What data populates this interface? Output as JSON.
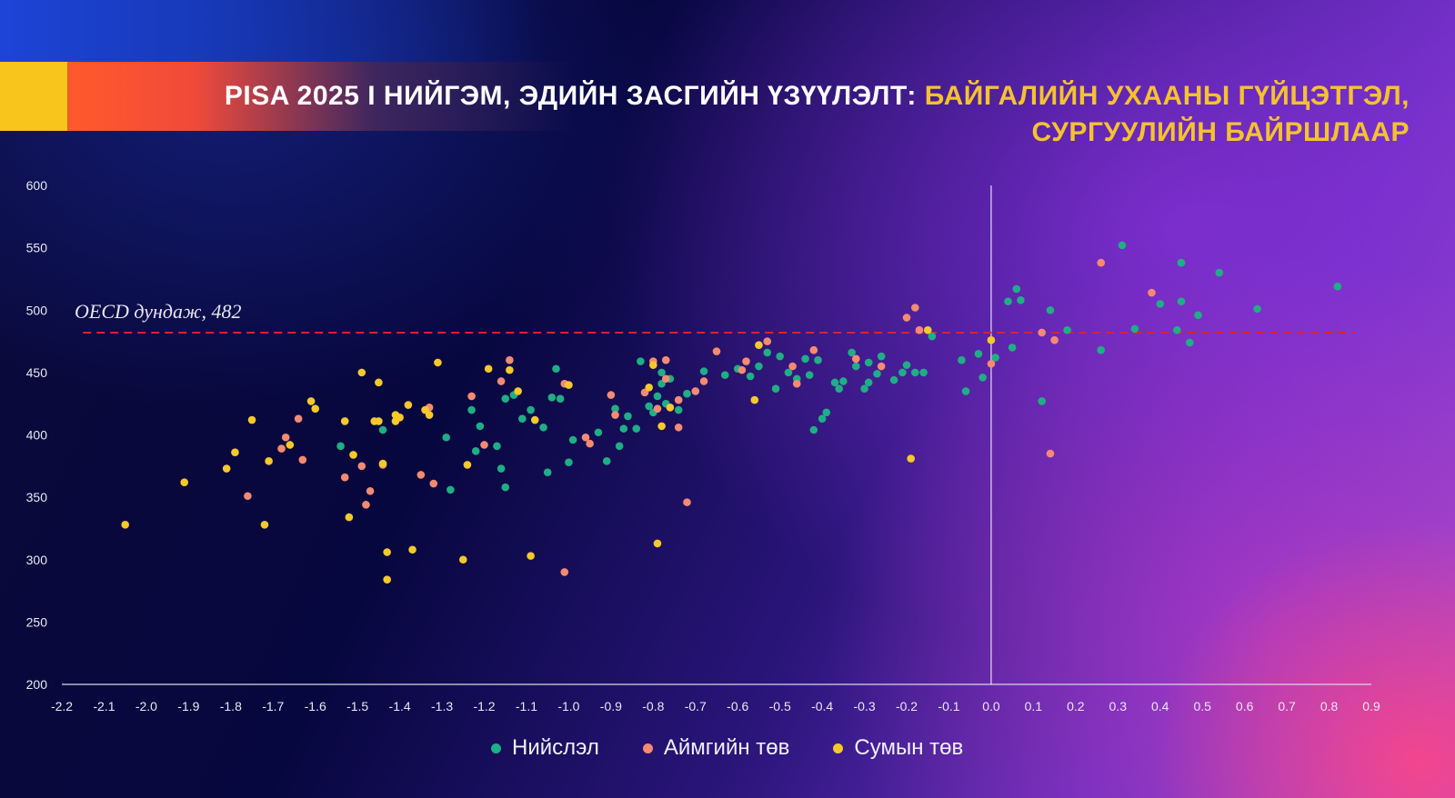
{
  "title": {
    "part1": "PISA 2025 I НИЙГЭМ, ЭДИЙН ЗАСГИЙН ҮЗҮҮЛЭЛТ: ",
    "part2": "БАЙГАЛИЙН УХААНЫ ГҮЙЦЭТГЭЛ,",
    "part3": "СУРГУУЛИЙН БАЙРШЛААР"
  },
  "oecd_label": "OECD дундаж, 482",
  "legend": [
    {
      "name": "Нийслэл",
      "color": "#1fae85"
    },
    {
      "name": "Аймгийн төв",
      "color": "#f58a72"
    },
    {
      "name": "Сумын төв",
      "color": "#f6c92a"
    }
  ],
  "chart_data": {
    "type": "scatter",
    "xlim": [
      -2.2,
      0.9
    ],
    "ylim": [
      200,
      600
    ],
    "x_ticks": [
      "-2.2",
      "-2.1",
      "-2.0",
      "-1.9",
      "-1.8",
      "-1.7",
      "-1.6",
      "-1.5",
      "-1.4",
      "-1.3",
      "-1.2",
      "-1.1",
      "-1.0",
      "-0.9",
      "-0.8",
      "-0.7",
      "-0.6",
      "-0.5",
      "-0.4",
      "-0.3",
      "-0.2",
      "-0.1",
      "0.0",
      "0.1",
      "0.2",
      "0.3",
      "0.4",
      "0.5",
      "0.6",
      "0.7",
      "0.8",
      "0.9"
    ],
    "y_ticks": [
      "200",
      "250",
      "300",
      "350",
      "400",
      "450",
      "500",
      "550",
      "600"
    ],
    "reference_line": {
      "y": 482,
      "label": "OECD дундаж, 482",
      "style": "dashed",
      "color": "#e0202a"
    },
    "vertical_line": {
      "x": 0.0,
      "color": "#ffffff"
    },
    "series": [
      {
        "name": "Нийслэл",
        "color": "#1fae85",
        "points": [
          [
            -1.54,
            391
          ],
          [
            -1.44,
            404
          ],
          [
            -1.29,
            398
          ],
          [
            -1.28,
            356
          ],
          [
            -1.23,
            420
          ],
          [
            -1.22,
            387
          ],
          [
            -1.21,
            407
          ],
          [
            -1.17,
            391
          ],
          [
            -1.16,
            373
          ],
          [
            -1.15,
            358
          ],
          [
            -1.15,
            429
          ],
          [
            -1.13,
            432
          ],
          [
            -1.11,
            413
          ],
          [
            -1.09,
            420
          ],
          [
            -1.06,
            406
          ],
          [
            -1.05,
            370
          ],
          [
            -1.04,
            430
          ],
          [
            -1.03,
            453
          ],
          [
            -1.02,
            429
          ],
          [
            -1.0,
            378
          ],
          [
            -0.99,
            396
          ],
          [
            -0.93,
            402
          ],
          [
            -0.91,
            379
          ],
          [
            -0.89,
            421
          ],
          [
            -0.88,
            391
          ],
          [
            -0.87,
            405
          ],
          [
            -0.86,
            415
          ],
          [
            -0.84,
            405
          ],
          [
            -0.83,
            459
          ],
          [
            -0.81,
            423
          ],
          [
            -0.8,
            418
          ],
          [
            -0.79,
            431
          ],
          [
            -0.78,
            450
          ],
          [
            -0.78,
            441
          ],
          [
            -0.77,
            425
          ],
          [
            -0.76,
            445
          ],
          [
            -0.74,
            420
          ],
          [
            -0.72,
            433
          ],
          [
            -0.68,
            451
          ],
          [
            -0.63,
            448
          ],
          [
            -0.6,
            453
          ],
          [
            -0.57,
            447
          ],
          [
            -0.55,
            455
          ],
          [
            -0.53,
            466
          ],
          [
            -0.51,
            437
          ],
          [
            -0.5,
            463
          ],
          [
            -0.48,
            450
          ],
          [
            -0.46,
            445
          ],
          [
            -0.44,
            461
          ],
          [
            -0.43,
            448
          ],
          [
            -0.42,
            404
          ],
          [
            -0.41,
            460
          ],
          [
            -0.4,
            413
          ],
          [
            -0.39,
            418
          ],
          [
            -0.37,
            442
          ],
          [
            -0.36,
            437
          ],
          [
            -0.35,
            443
          ],
          [
            -0.33,
            466
          ],
          [
            -0.32,
            455
          ],
          [
            -0.3,
            437
          ],
          [
            -0.29,
            442
          ],
          [
            -0.29,
            458
          ],
          [
            -0.27,
            449
          ],
          [
            -0.26,
            463
          ],
          [
            -0.23,
            444
          ],
          [
            -0.21,
            450
          ],
          [
            -0.2,
            456
          ],
          [
            -0.18,
            450
          ],
          [
            -0.16,
            450
          ],
          [
            -0.14,
            479
          ],
          [
            -0.07,
            460
          ],
          [
            -0.06,
            435
          ],
          [
            -0.03,
            465
          ],
          [
            -0.02,
            446
          ],
          [
            0.01,
            462
          ],
          [
            0.04,
            507
          ],
          [
            0.05,
            470
          ],
          [
            0.06,
            517
          ],
          [
            0.07,
            508
          ],
          [
            0.12,
            427
          ],
          [
            0.14,
            500
          ],
          [
            0.18,
            484
          ],
          [
            0.26,
            468
          ],
          [
            0.31,
            552
          ],
          [
            0.34,
            485
          ],
          [
            0.4,
            505
          ],
          [
            0.44,
            484
          ],
          [
            0.45,
            538
          ],
          [
            0.45,
            507
          ],
          [
            0.47,
            474
          ],
          [
            0.49,
            496
          ],
          [
            0.54,
            530
          ],
          [
            0.63,
            501
          ],
          [
            0.82,
            519
          ]
        ]
      },
      {
        "name": "Аймгийн төв",
        "color": "#f58a72",
        "points": [
          [
            -1.76,
            351
          ],
          [
            -1.68,
            389
          ],
          [
            -1.67,
            398
          ],
          [
            -1.64,
            413
          ],
          [
            -1.63,
            380
          ],
          [
            -1.53,
            366
          ],
          [
            -1.49,
            375
          ],
          [
            -1.48,
            344
          ],
          [
            -1.47,
            355
          ],
          [
            -1.44,
            376
          ],
          [
            -1.35,
            368
          ],
          [
            -1.33,
            422
          ],
          [
            -1.32,
            361
          ],
          [
            -1.23,
            431
          ],
          [
            -1.2,
            392
          ],
          [
            -1.16,
            443
          ],
          [
            -1.14,
            460
          ],
          [
            -1.01,
            441
          ],
          [
            -1.01,
            290
          ],
          [
            -0.96,
            398
          ],
          [
            -0.95,
            393
          ],
          [
            -0.9,
            432
          ],
          [
            -0.89,
            416
          ],
          [
            -0.82,
            434
          ],
          [
            -0.8,
            459
          ],
          [
            -0.79,
            421
          ],
          [
            -0.77,
            460
          ],
          [
            -0.77,
            445
          ],
          [
            -0.74,
            428
          ],
          [
            -0.74,
            406
          ],
          [
            -0.72,
            346
          ],
          [
            -0.7,
            435
          ],
          [
            -0.68,
            443
          ],
          [
            -0.65,
            467
          ],
          [
            -0.59,
            452
          ],
          [
            -0.58,
            459
          ],
          [
            -0.53,
            475
          ],
          [
            -0.47,
            455
          ],
          [
            -0.46,
            441
          ],
          [
            -0.42,
            468
          ],
          [
            -0.32,
            461
          ],
          [
            -0.26,
            455
          ],
          [
            -0.2,
            494
          ],
          [
            -0.18,
            502
          ],
          [
            -0.17,
            484
          ],
          [
            0.0,
            457
          ],
          [
            0.12,
            482
          ],
          [
            0.14,
            385
          ],
          [
            0.15,
            476
          ],
          [
            0.26,
            538
          ],
          [
            0.38,
            514
          ]
        ]
      },
      {
        "name": "Сумын төв",
        "color": "#f6c92a",
        "points": [
          [
            -2.05,
            328
          ],
          [
            -1.91,
            362
          ],
          [
            -1.81,
            373
          ],
          [
            -1.79,
            386
          ],
          [
            -1.75,
            412
          ],
          [
            -1.72,
            328
          ],
          [
            -1.71,
            379
          ],
          [
            -1.66,
            392
          ],
          [
            -1.61,
            427
          ],
          [
            -1.6,
            421
          ],
          [
            -1.53,
            411
          ],
          [
            -1.52,
            334
          ],
          [
            -1.51,
            384
          ],
          [
            -1.49,
            450
          ],
          [
            -1.46,
            411
          ],
          [
            -1.45,
            411
          ],
          [
            -1.45,
            442
          ],
          [
            -1.44,
            377
          ],
          [
            -1.43,
            306
          ],
          [
            -1.43,
            284
          ],
          [
            -1.41,
            411
          ],
          [
            -1.41,
            416
          ],
          [
            -1.4,
            414
          ],
          [
            -1.38,
            424
          ],
          [
            -1.37,
            308
          ],
          [
            -1.34,
            420
          ],
          [
            -1.33,
            416
          ],
          [
            -1.31,
            458
          ],
          [
            -1.25,
            300
          ],
          [
            -1.24,
            376
          ],
          [
            -1.19,
            453
          ],
          [
            -1.14,
            452
          ],
          [
            -1.12,
            435
          ],
          [
            -1.09,
            303
          ],
          [
            -1.08,
            412
          ],
          [
            -1.0,
            440
          ],
          [
            -0.81,
            438
          ],
          [
            -0.8,
            456
          ],
          [
            -0.79,
            313
          ],
          [
            -0.78,
            407
          ],
          [
            -0.76,
            422
          ],
          [
            -0.56,
            428
          ],
          [
            -0.55,
            472
          ],
          [
            -0.19,
            381
          ],
          [
            -0.15,
            484
          ],
          [
            0.0,
            476
          ]
        ]
      }
    ]
  }
}
